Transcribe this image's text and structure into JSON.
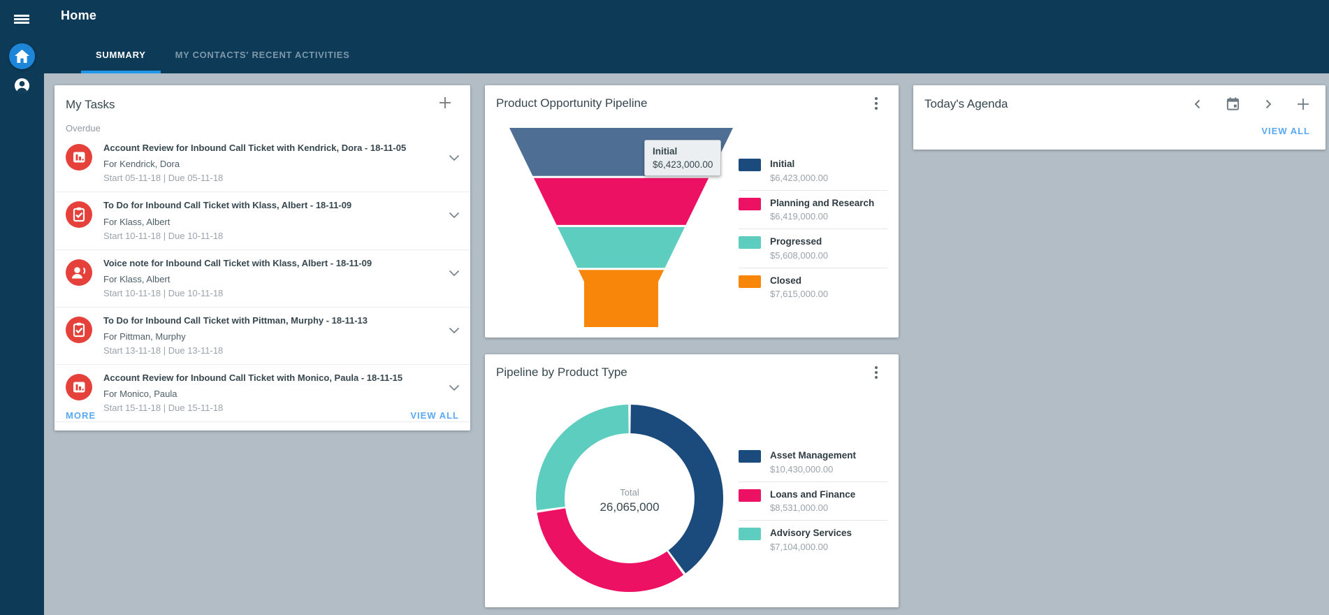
{
  "header": {
    "title": "Home",
    "tabs": [
      {
        "label": "SUMMARY",
        "active": true
      },
      {
        "label": "MY CONTACTS' RECENT ACTIVITIES",
        "active": false
      }
    ]
  },
  "my_tasks": {
    "title": "My Tasks",
    "group_label": "Overdue",
    "more_label": "MORE",
    "view_all_label": "VIEW ALL",
    "tasks": [
      {
        "icon": "chart-icon",
        "title": "Account Review for Inbound Call Ticket with Kendrick, Dora - 18-11-05",
        "for": "For Kendrick, Dora",
        "dates": "Start 05-11-18 | Due 05-11-18"
      },
      {
        "icon": "todo-icon",
        "title": "To Do for Inbound Call Ticket with Klass, Albert - 18-11-09",
        "for": "For Klass, Albert",
        "dates": "Start 10-11-18 | Due 10-11-18"
      },
      {
        "icon": "voice-icon",
        "title": "Voice note for Inbound Call Ticket with Klass, Albert - 18-11-09",
        "for": "For Klass, Albert",
        "dates": "Start 10-11-18 | Due 10-11-18"
      },
      {
        "icon": "todo-icon",
        "title": "To Do for Inbound Call Ticket with Pittman, Murphy - 18-11-13",
        "for": "For Pittman, Murphy",
        "dates": "Start 13-11-18 | Due 13-11-18"
      },
      {
        "icon": "chart-icon",
        "title": "Account Review for Inbound Call Ticket with Monico, Paula - 18-11-15",
        "for": "For Monico, Paula",
        "dates": "Start 15-11-18 | Due 15-11-18"
      }
    ],
    "icon_color": "#e5403a"
  },
  "funnel_panel": {
    "title": "Product Opportunity Pipeline",
    "tooltip": {
      "label": "Initial",
      "value": "$6,423,000.00"
    }
  },
  "donut_panel": {
    "title": "Pipeline by Product Type",
    "center_label": "Total",
    "center_value": "26,065,000"
  },
  "agenda_panel": {
    "title": "Today's Agenda",
    "view_all_label": "VIEW ALL"
  },
  "colors": {
    "topbar": "#0d3a57",
    "accent_blue": "#1f97e8",
    "link_blue": "#58a9f5",
    "content_bg": "#b2bdc5",
    "task_icon_red": "#e5403a",
    "navy": "#1b4a7d",
    "pink": "#ed1164",
    "teal": "#5ccdbf",
    "orange": "#f7860b",
    "funnel_hover_slate": "#4e6e93"
  },
  "chart_data": [
    {
      "type": "funnel",
      "title": "Product Opportunity Pipeline",
      "categories": [
        "Initial",
        "Planning and Research",
        "Progressed",
        "Closed"
      ],
      "values": [
        6423000,
        6419000,
        5608000,
        7615000
      ],
      "value_labels": [
        "$6,423,000.00",
        "$6,419,000.00",
        "$5,608,000.00",
        "$7,615,000.00"
      ],
      "colors": [
        "#4e6e93",
        "#ed1164",
        "#5ccdbf",
        "#f7860b"
      ],
      "legend_colors": [
        "#1b4a7d",
        "#ed1164",
        "#5ccdbf",
        "#f7860b"
      ],
      "legend_position": "right",
      "annotation": {
        "label": "Initial",
        "value": "$6,423,000.00",
        "note": "tooltip shown on hovered Initial segment"
      }
    },
    {
      "type": "donut",
      "title": "Pipeline by Product Type",
      "categories": [
        "Asset Management",
        "Loans and Finance",
        "Advisory Services"
      ],
      "values": [
        10430000,
        8531000,
        7104000
      ],
      "value_labels": [
        "$10,430,000.00",
        "$8,531,000.00",
        "$7,104,000.00"
      ],
      "colors": [
        "#1b4a7d",
        "#ed1164",
        "#5ccdbf"
      ],
      "legend_position": "right",
      "center_label": "Total",
      "center_value": "26,065,000",
      "total": 26065000,
      "start_angle_deg": -90,
      "direction": "clockwise"
    }
  ]
}
